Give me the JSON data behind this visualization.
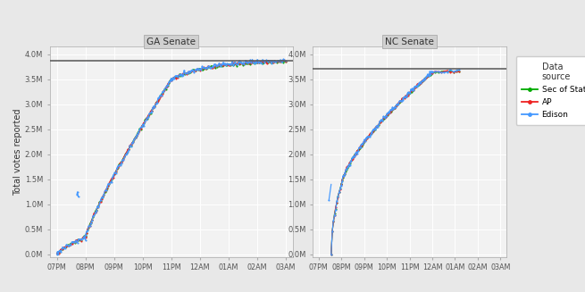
{
  "ga_title": "GA Senate",
  "nc_title": "NC Senate",
  "ylabel": "Total votes reported",
  "legend_title": "Data\nsource",
  "legend_entries": [
    "Sec of State",
    "AP",
    "Edison"
  ],
  "sec_color": "#00AA00",
  "ap_color": "#EE2222",
  "edison_color": "#4499FF",
  "background_color": "#E8E8E8",
  "panel_bg": "#F2F2F2",
  "grid_color": "#FFFFFF",
  "title_bar_color": "#D0D0D0",
  "ga_hline": 3870000,
  "nc_hline": 3710000,
  "ytick_vals": [
    0.0,
    0.5,
    1.0,
    1.5,
    2.0,
    2.5,
    3.0,
    3.5,
    4.0
  ],
  "xtick_labels": [
    "07PM",
    "08PM",
    "09PM",
    "10PM",
    "11PM",
    "12AM",
    "01AM",
    "02AM",
    "03AM"
  ]
}
